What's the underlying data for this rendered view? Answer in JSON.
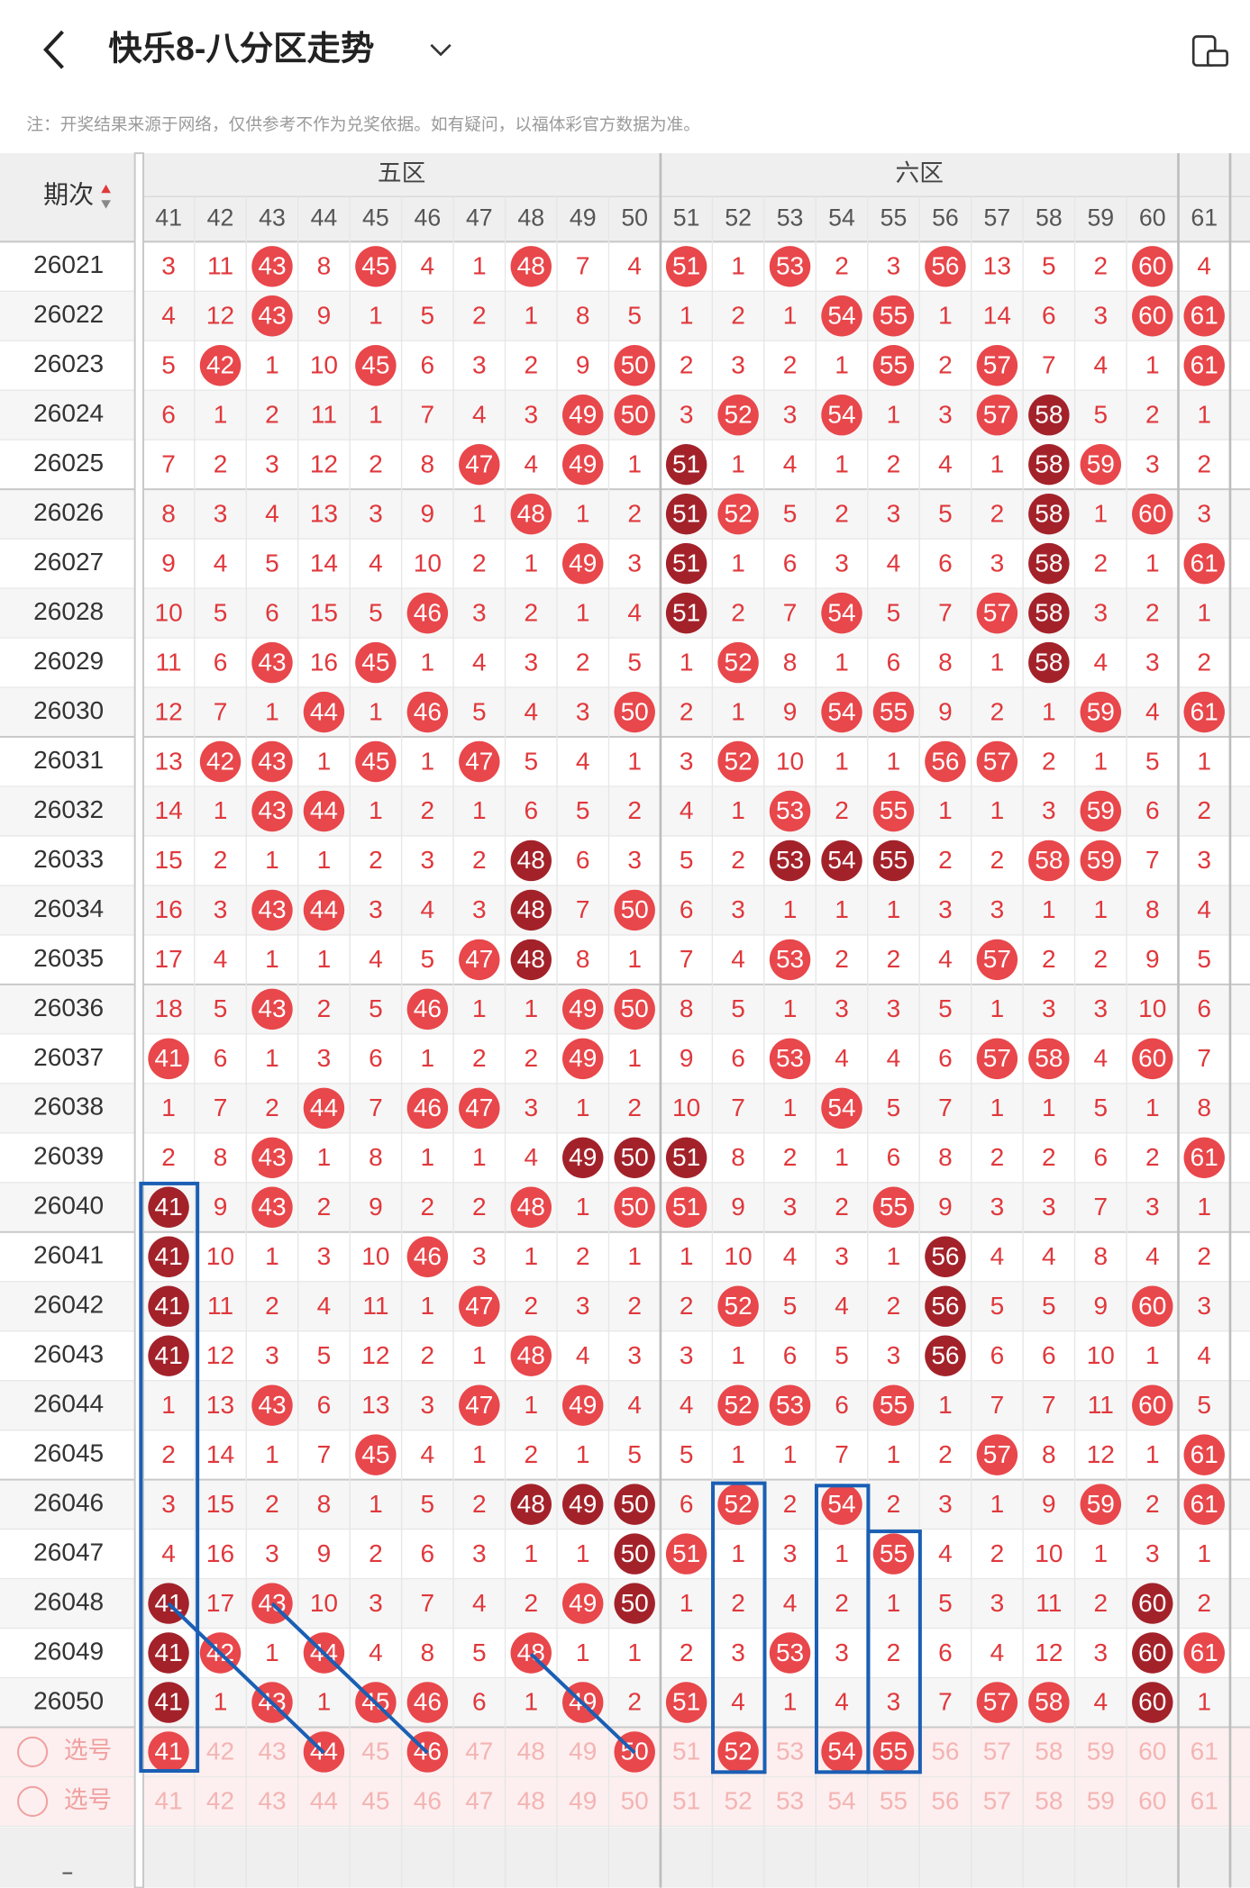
{
  "header": {
    "title": "快乐8-八分区走势"
  },
  "note": "注：开奖结果来源于网络，仅供参考不作为兑奖依据。如有疑问，以福体彩官方数据为准。",
  "table": {
    "sort_label": "期次",
    "groups": [
      "五区",
      "六区"
    ],
    "columns": [
      41,
      42,
      43,
      44,
      45,
      46,
      47,
      48,
      49,
      50,
      51,
      52,
      53,
      54,
      55,
      56,
      57,
      58,
      59,
      60,
      61
    ],
    "rows": [
      {
        "issue": "26021",
        "cells": [
          3,
          11,
          43,
          8,
          45,
          4,
          1,
          48,
          7,
          4,
          51,
          1,
          53,
          2,
          3,
          56,
          13,
          5,
          2,
          60,
          4
        ]
      },
      {
        "issue": "26022",
        "cells": [
          4,
          12,
          43,
          9,
          1,
          5,
          2,
          1,
          8,
          5,
          1,
          2,
          1,
          54,
          55,
          1,
          14,
          6,
          3,
          60,
          61
        ]
      },
      {
        "issue": "26023",
        "cells": [
          5,
          42,
          1,
          10,
          45,
          6,
          3,
          2,
          9,
          50,
          2,
          3,
          2,
          1,
          55,
          2,
          57,
          7,
          4,
          1,
          61
        ]
      },
      {
        "issue": "26024",
        "cells": [
          6,
          1,
          2,
          11,
          1,
          7,
          4,
          3,
          49,
          50,
          3,
          52,
          3,
          54,
          1,
          3,
          57,
          58,
          5,
          2,
          1
        ]
      },
      {
        "issue": "26025",
        "cells": [
          7,
          2,
          3,
          12,
          2,
          8,
          47,
          4,
          49,
          1,
          51,
          1,
          4,
          1,
          2,
          4,
          1,
          58,
          59,
          3,
          2
        ]
      },
      {
        "issue": "26026",
        "cells": [
          8,
          3,
          4,
          13,
          3,
          9,
          1,
          48,
          1,
          2,
          51,
          52,
          5,
          2,
          3,
          5,
          2,
          58,
          1,
          60,
          3
        ]
      },
      {
        "issue": "26027",
        "cells": [
          9,
          4,
          5,
          14,
          4,
          10,
          2,
          1,
          49,
          3,
          51,
          1,
          6,
          3,
          4,
          6,
          3,
          58,
          2,
          1,
          61
        ]
      },
      {
        "issue": "26028",
        "cells": [
          10,
          5,
          6,
          15,
          5,
          46,
          3,
          2,
          1,
          4,
          51,
          2,
          7,
          54,
          5,
          7,
          57,
          58,
          3,
          2,
          1
        ]
      },
      {
        "issue": "26029",
        "cells": [
          11,
          6,
          43,
          16,
          45,
          1,
          4,
          3,
          2,
          5,
          1,
          52,
          8,
          1,
          6,
          8,
          1,
          58,
          4,
          3,
          2
        ]
      },
      {
        "issue": "26030",
        "cells": [
          12,
          7,
          1,
          44,
          1,
          46,
          5,
          4,
          3,
          50,
          2,
          1,
          9,
          54,
          55,
          9,
          2,
          1,
          59,
          4,
          61
        ]
      },
      {
        "issue": "26031",
        "cells": [
          13,
          42,
          43,
          1,
          45,
          1,
          47,
          5,
          4,
          1,
          3,
          52,
          10,
          1,
          1,
          56,
          57,
          2,
          1,
          5,
          1
        ]
      },
      {
        "issue": "26032",
        "cells": [
          14,
          1,
          43,
          44,
          1,
          2,
          1,
          6,
          5,
          2,
          4,
          1,
          53,
          2,
          55,
          1,
          1,
          3,
          59,
          6,
          2
        ]
      },
      {
        "issue": "26033",
        "cells": [
          15,
          2,
          1,
          1,
          2,
          3,
          2,
          48,
          6,
          3,
          5,
          2,
          53,
          54,
          55,
          2,
          2,
          58,
          59,
          7,
          3
        ]
      },
      {
        "issue": "26034",
        "cells": [
          16,
          3,
          43,
          44,
          3,
          4,
          3,
          48,
          7,
          50,
          6,
          3,
          1,
          1,
          1,
          3,
          3,
          1,
          1,
          8,
          4
        ]
      },
      {
        "issue": "26035",
        "cells": [
          17,
          4,
          1,
          1,
          4,
          5,
          47,
          48,
          8,
          1,
          7,
          4,
          53,
          2,
          2,
          4,
          57,
          2,
          2,
          9,
          5
        ]
      },
      {
        "issue": "26036",
        "cells": [
          18,
          5,
          43,
          2,
          5,
          46,
          1,
          1,
          49,
          50,
          8,
          5,
          1,
          3,
          3,
          5,
          1,
          3,
          3,
          10,
          6
        ]
      },
      {
        "issue": "26037",
        "cells": [
          41,
          6,
          1,
          3,
          6,
          1,
          2,
          2,
          49,
          1,
          9,
          6,
          53,
          4,
          4,
          6,
          57,
          58,
          4,
          60,
          7
        ]
      },
      {
        "issue": "26038",
        "cells": [
          1,
          7,
          2,
          44,
          7,
          46,
          47,
          3,
          1,
          2,
          10,
          7,
          1,
          54,
          5,
          7,
          1,
          1,
          5,
          1,
          8
        ]
      },
      {
        "issue": "26039",
        "cells": [
          2,
          8,
          43,
          1,
          8,
          1,
          1,
          4,
          49,
          50,
          51,
          8,
          2,
          1,
          6,
          8,
          2,
          2,
          6,
          2,
          61
        ]
      },
      {
        "issue": "26040",
        "cells": [
          41,
          9,
          43,
          2,
          9,
          2,
          2,
          48,
          1,
          50,
          51,
          9,
          3,
          2,
          55,
          9,
          3,
          3,
          7,
          3,
          1
        ]
      },
      {
        "issue": "26041",
        "cells": [
          41,
          10,
          1,
          3,
          10,
          46,
          3,
          1,
          2,
          1,
          1,
          10,
          4,
          3,
          1,
          56,
          4,
          4,
          8,
          4,
          2
        ]
      },
      {
        "issue": "26042",
        "cells": [
          41,
          11,
          2,
          4,
          11,
          1,
          47,
          2,
          3,
          2,
          2,
          52,
          5,
          4,
          2,
          56,
          5,
          5,
          9,
          60,
          3
        ]
      },
      {
        "issue": "26043",
        "cells": [
          41,
          12,
          3,
          5,
          12,
          2,
          1,
          48,
          4,
          3,
          3,
          1,
          6,
          5,
          3,
          56,
          6,
          6,
          10,
          1,
          4
        ]
      },
      {
        "issue": "26044",
        "cells": [
          1,
          13,
          43,
          6,
          13,
          3,
          47,
          1,
          49,
          4,
          4,
          52,
          53,
          6,
          55,
          1,
          7,
          7,
          11,
          60,
          5
        ]
      },
      {
        "issue": "26045",
        "cells": [
          2,
          14,
          1,
          7,
          45,
          4,
          1,
          2,
          1,
          5,
          5,
          1,
          1,
          7,
          1,
          2,
          57,
          8,
          12,
          1,
          61
        ]
      },
      {
        "issue": "26046",
        "cells": [
          3,
          15,
          2,
          8,
          1,
          5,
          2,
          48,
          49,
          50,
          6,
          52,
          2,
          54,
          2,
          3,
          1,
          9,
          59,
          2,
          61
        ]
      },
      {
        "issue": "26047",
        "cells": [
          4,
          16,
          3,
          9,
          2,
          6,
          3,
          1,
          1,
          50,
          51,
          1,
          3,
          1,
          55,
          4,
          2,
          10,
          1,
          3,
          1
        ]
      },
      {
        "issue": "26048",
        "cells": [
          41,
          17,
          43,
          10,
          3,
          7,
          4,
          2,
          49,
          50,
          1,
          2,
          4,
          2,
          1,
          5,
          3,
          11,
          2,
          60,
          2
        ]
      },
      {
        "issue": "26049",
        "cells": [
          41,
          42,
          1,
          44,
          4,
          8,
          5,
          48,
          1,
          1,
          2,
          3,
          53,
          3,
          2,
          6,
          4,
          12,
          3,
          60,
          61
        ]
      },
      {
        "issue": "26050",
        "cells": [
          41,
          1,
          43,
          1,
          45,
          46,
          6,
          1,
          49,
          2,
          51,
          4,
          1,
          4,
          3,
          7,
          57,
          58,
          4,
          60,
          1
        ]
      }
    ],
    "select_rows": [
      {
        "label": "选号",
        "numbers": [
          41,
          42,
          43,
          44,
          45,
          46,
          47,
          48,
          49,
          50,
          51,
          52,
          53,
          54,
          55,
          56,
          57,
          58,
          59,
          60,
          61
        ],
        "picked": [
          41,
          44,
          46,
          50,
          52,
          54,
          55
        ]
      },
      {
        "label": "选号",
        "numbers": [
          41,
          42,
          43,
          44,
          45,
          46,
          47,
          48,
          49,
          50,
          51,
          52,
          53,
          54,
          55,
          56,
          57,
          58,
          59,
          60,
          61
        ],
        "picked": []
      }
    ]
  }
}
